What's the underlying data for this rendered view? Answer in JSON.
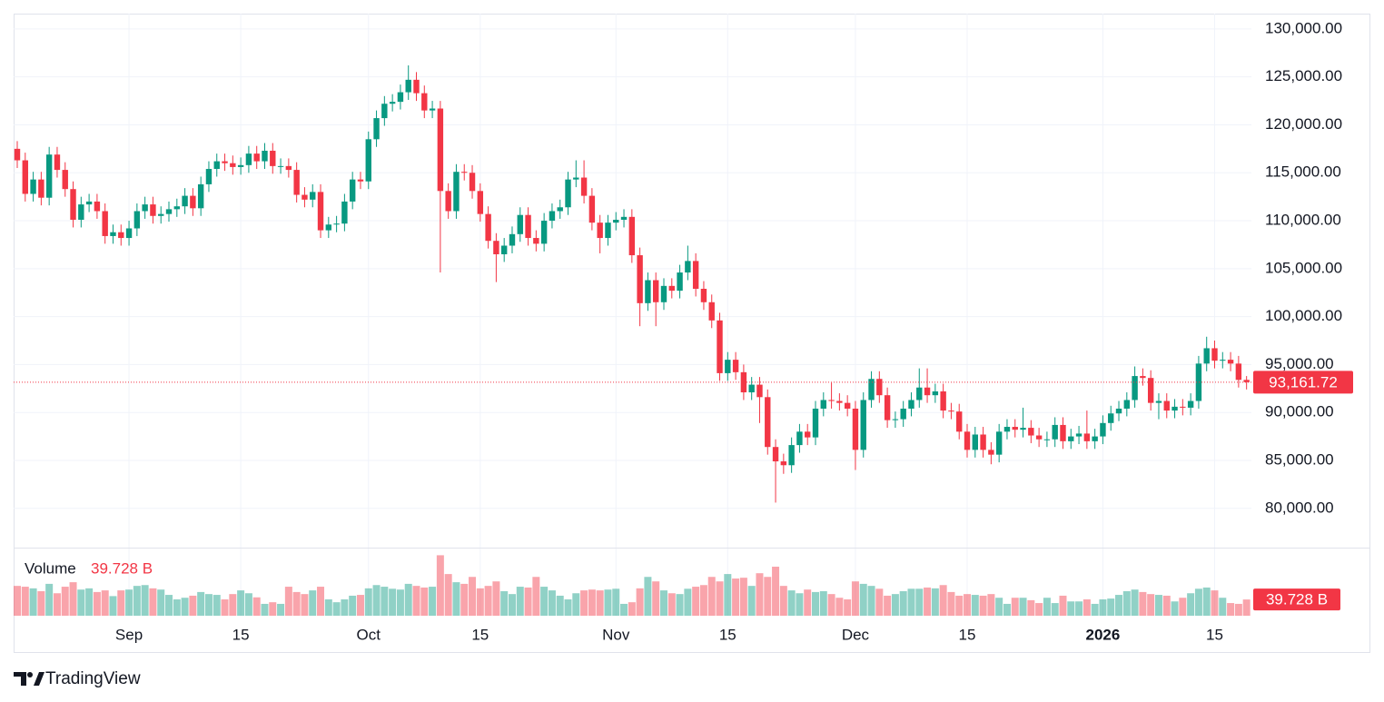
{
  "brand": "TradingView",
  "chart_data": {
    "type": "candlestick",
    "x": [
      "2025-08-18",
      "2025-08-19",
      "2025-08-20",
      "2025-08-21",
      "2025-08-22",
      "2025-08-23",
      "2025-08-24",
      "2025-08-25",
      "2025-08-26",
      "2025-08-27",
      "2025-08-28",
      "2025-08-29",
      "2025-08-30",
      "2025-08-31",
      "2025-09-01",
      "2025-09-02",
      "2025-09-03",
      "2025-09-04",
      "2025-09-05",
      "2025-09-06",
      "2025-09-07",
      "2025-09-08",
      "2025-09-09",
      "2025-09-10",
      "2025-09-11",
      "2025-09-12",
      "2025-09-13",
      "2025-09-14",
      "2025-09-15",
      "2025-09-16",
      "2025-09-17",
      "2025-09-18",
      "2025-09-19",
      "2025-09-20",
      "2025-09-21",
      "2025-09-22",
      "2025-09-23",
      "2025-09-24",
      "2025-09-25",
      "2025-09-26",
      "2025-09-27",
      "2025-09-28",
      "2025-09-29",
      "2025-09-30",
      "2025-10-01",
      "2025-10-02",
      "2025-10-03",
      "2025-10-04",
      "2025-10-05",
      "2025-10-06",
      "2025-10-07",
      "2025-10-08",
      "2025-10-09",
      "2025-10-10",
      "2025-10-11",
      "2025-10-12",
      "2025-10-13",
      "2025-10-14",
      "2025-10-15",
      "2025-10-16",
      "2025-10-17",
      "2025-10-18",
      "2025-10-19",
      "2025-10-20",
      "2025-10-21",
      "2025-10-22",
      "2025-10-23",
      "2025-10-24",
      "2025-10-25",
      "2025-10-26",
      "2025-10-27",
      "2025-10-28",
      "2025-10-29",
      "2025-10-30",
      "2025-10-31",
      "2025-11-01",
      "2025-11-02",
      "2025-11-03",
      "2025-11-04",
      "2025-11-05",
      "2025-11-06",
      "2025-11-07",
      "2025-11-08",
      "2025-11-09",
      "2025-11-10",
      "2025-11-11",
      "2025-11-12",
      "2025-11-13",
      "2025-11-14",
      "2025-11-15",
      "2025-11-16",
      "2025-11-17",
      "2025-11-18",
      "2025-11-19",
      "2025-11-20",
      "2025-11-21",
      "2025-11-22",
      "2025-11-23",
      "2025-11-24",
      "2025-11-25",
      "2025-11-26",
      "2025-11-27",
      "2025-11-28",
      "2025-11-29",
      "2025-11-30",
      "2025-12-01",
      "2025-12-02",
      "2025-12-03",
      "2025-12-04",
      "2025-12-05",
      "2025-12-06",
      "2025-12-07",
      "2025-12-08",
      "2025-12-09",
      "2025-12-10",
      "2025-12-11",
      "2025-12-12",
      "2025-12-13",
      "2025-12-14",
      "2025-12-15",
      "2025-12-16",
      "2025-12-17",
      "2025-12-18",
      "2025-12-19",
      "2025-12-20",
      "2025-12-21",
      "2025-12-22",
      "2025-12-23",
      "2025-12-24",
      "2025-12-25",
      "2025-12-26",
      "2025-12-27",
      "2025-12-28",
      "2025-12-29",
      "2025-12-30",
      "2025-12-31",
      "2026-01-01",
      "2026-01-02",
      "2026-01-03",
      "2026-01-04",
      "2026-01-05",
      "2026-01-06",
      "2026-01-07",
      "2026-01-08",
      "2026-01-09",
      "2026-01-10",
      "2026-01-11",
      "2026-01-12",
      "2026-01-13",
      "2026-01-14",
      "2026-01-15",
      "2026-01-16",
      "2026-01-17",
      "2026-01-18",
      "2026-01-19"
    ],
    "open": [
      117500,
      116300,
      112800,
      114300,
      112400,
      116900,
      115300,
      113300,
      110100,
      111700,
      112000,
      111000,
      108400,
      108800,
      108200,
      109200,
      111000,
      111700,
      110500,
      110700,
      111200,
      111500,
      112600,
      111300,
      113800,
      115400,
      116200,
      116000,
      115600,
      115800,
      117000,
      116200,
      117300,
      115700,
      115700,
      115300,
      112700,
      112200,
      113000,
      109000,
      109600,
      109700,
      112000,
      114300,
      114100,
      118500,
      120700,
      122200,
      122400,
      123400,
      124700,
      123300,
      121500,
      121700,
      113100,
      111000,
      115100,
      115000,
      113100,
      110700,
      107900,
      106500,
      107400,
      108600,
      110600,
      108200,
      107600,
      110000,
      111000,
      111400,
      114300,
      114500,
      112600,
      109800,
      108200,
      109800,
      110100,
      110400,
      106400,
      101400,
      103800,
      101500,
      103200,
      102700,
      104600,
      105800,
      102900,
      101500,
      99600,
      94100,
      95500,
      94200,
      92100,
      92900,
      91600,
      86400,
      84900,
      84500,
      86600,
      88000,
      87400,
      90400,
      91300,
      91200,
      91000,
      90400,
      86100,
      91300,
      93500,
      91800,
      89200,
      89300,
      90400,
      91300,
      92600,
      91800,
      92200,
      90200,
      90100,
      88000,
      86100,
      87700,
      86100,
      85600,
      88000,
      88500,
      88200,
      88400,
      87600,
      87200,
      87200,
      88700,
      87000,
      87500,
      87800,
      87000,
      87500,
      88900,
      89900,
      90400,
      91300,
      93800,
      93600,
      91000,
      91200,
      90200,
      90600,
      90500,
      91200,
      95100,
      96700,
      95400,
      95500,
      95100,
      93400
    ],
    "high": [
      118300,
      117100,
      115100,
      115100,
      117700,
      117700,
      116100,
      114100,
      112500,
      112800,
      112800,
      111800,
      109600,
      109600,
      110000,
      111800,
      112500,
      112500,
      111500,
      112000,
      112300,
      113400,
      113400,
      114600,
      116200,
      117000,
      117000,
      116800,
      116600,
      117800,
      117800,
      118100,
      118100,
      116500,
      116500,
      116100,
      113500,
      113800,
      113800,
      110400,
      110500,
      112800,
      115100,
      115100,
      119300,
      121500,
      123000,
      123200,
      124200,
      126200,
      125500,
      124100,
      122500,
      122500,
      113900,
      115900,
      115900,
      115800,
      113900,
      111500,
      108700,
      108200,
      109400,
      111400,
      111400,
      109000,
      110800,
      111800,
      112200,
      115100,
      116300,
      116300,
      113400,
      110600,
      110600,
      110900,
      111200,
      111200,
      107200,
      104600,
      104600,
      104000,
      104000,
      105400,
      107400,
      106600,
      103700,
      102300,
      100400,
      96300,
      96300,
      95000,
      93700,
      93700,
      92400,
      87200,
      85700,
      87400,
      88800,
      88800,
      91200,
      92100,
      93100,
      92000,
      91800,
      91200,
      92100,
      94300,
      94300,
      92600,
      90100,
      91200,
      92100,
      94600,
      94600,
      93000,
      93000,
      91000,
      90900,
      88800,
      88500,
      88500,
      86900,
      88800,
      89300,
      89300,
      90500,
      89200,
      88400,
      88000,
      89500,
      89500,
      88300,
      88600,
      90200,
      88300,
      89700,
      90700,
      91200,
      92100,
      94800,
      94600,
      94400,
      92000,
      92000,
      91400,
      91400,
      92000,
      95900,
      97900,
      97500,
      96300,
      96300,
      95900,
      93800
    ],
    "low": [
      115500,
      112000,
      112000,
      111600,
      111600,
      114500,
      112500,
      109300,
      109300,
      110900,
      110200,
      107600,
      107600,
      107400,
      107400,
      108400,
      110200,
      109700,
      109700,
      109900,
      110400,
      110700,
      110500,
      110500,
      113000,
      114600,
      115200,
      114800,
      114800,
      115000,
      115400,
      115400,
      114900,
      114900,
      114500,
      111900,
      111400,
      111400,
      108200,
      108200,
      108800,
      108900,
      111200,
      113300,
      113300,
      117700,
      119900,
      121400,
      121600,
      122600,
      122500,
      120700,
      120700,
      104600,
      110200,
      110200,
      114200,
      112300,
      109900,
      107100,
      103600,
      105700,
      106600,
      107800,
      107400,
      106800,
      106800,
      109200,
      110200,
      110600,
      113500,
      111800,
      109000,
      106600,
      107400,
      109000,
      109300,
      105600,
      99000,
      100600,
      99000,
      100700,
      101900,
      101900,
      103800,
      102100,
      100700,
      98800,
      93300,
      93300,
      93400,
      91300,
      91300,
      88900,
      85600,
      80600,
      83600,
      83700,
      85800,
      86600,
      86600,
      89600,
      90400,
      90200,
      89600,
      84000,
      85300,
      90500,
      91000,
      88400,
      88400,
      88500,
      89600,
      90500,
      91000,
      91000,
      89400,
      89300,
      87200,
      85300,
      85300,
      85300,
      84600,
      84800,
      87200,
      87400,
      87400,
      86800,
      86400,
      86400,
      86400,
      86200,
      86200,
      86700,
      86200,
      86200,
      86700,
      88100,
      89100,
      89600,
      90500,
      92800,
      90200,
      89300,
      89400,
      89400,
      89700,
      89700,
      90400,
      94300,
      94600,
      94600,
      94300,
      92600,
      92400
    ],
    "close": [
      116300,
      112800,
      114300,
      112400,
      116900,
      115300,
      113300,
      110100,
      111700,
      112000,
      111000,
      108400,
      108800,
      108200,
      109200,
      111000,
      111700,
      110500,
      110700,
      111200,
      111500,
      112600,
      111300,
      113800,
      115400,
      116200,
      116000,
      115600,
      115800,
      117000,
      116200,
      117300,
      115700,
      115700,
      115300,
      112700,
      112200,
      113000,
      109000,
      109600,
      109700,
      112000,
      114300,
      114100,
      118500,
      120700,
      122200,
      122400,
      123400,
      124700,
      123300,
      121500,
      121700,
      113100,
      111000,
      115100,
      115000,
      113100,
      110700,
      107900,
      106500,
      107400,
      108600,
      110600,
      108200,
      107600,
      110000,
      111000,
      111400,
      114300,
      114500,
      112600,
      109800,
      108200,
      109800,
      110100,
      110400,
      106400,
      101400,
      103800,
      101500,
      103200,
      102700,
      104600,
      105800,
      102900,
      101500,
      99600,
      94100,
      95500,
      94200,
      92100,
      92900,
      91600,
      86400,
      84900,
      84500,
      86600,
      88000,
      87400,
      90400,
      91300,
      91200,
      91000,
      90400,
      86100,
      91300,
      93500,
      91800,
      89200,
      89300,
      90400,
      91300,
      92600,
      91800,
      92200,
      90200,
      90100,
      88000,
      86100,
      87700,
      86100,
      85600,
      88000,
      88500,
      88200,
      88400,
      87600,
      87200,
      87200,
      88700,
      87000,
      87500,
      87800,
      87000,
      87500,
      88900,
      89900,
      90400,
      91300,
      93800,
      93600,
      91000,
      91200,
      90200,
      90600,
      90500,
      91200,
      95100,
      96700,
      95400,
      95500,
      95100,
      93400,
      93161.72
    ],
    "last_close_label": "93,161.72",
    "up_color": "#089981",
    "down_color": "#f23645",
    "ylim": [
      76000,
      131600
    ],
    "yticks": [
      {
        "value": 80000,
        "label": "80,000.00"
      },
      {
        "value": 85000,
        "label": "85,000.00"
      },
      {
        "value": 90000,
        "label": "90,000.00"
      },
      {
        "value": 95000,
        "label": "95,000.00"
      },
      {
        "value": 100000,
        "label": "100,000.00"
      },
      {
        "value": 105000,
        "label": "105,000.00"
      },
      {
        "value": 110000,
        "label": "110,000.00"
      },
      {
        "value": 115000,
        "label": "115,000.00"
      },
      {
        "value": 120000,
        "label": "120,000.00"
      },
      {
        "value": 125000,
        "label": "125,000.00"
      },
      {
        "value": 130000,
        "label": "130,000.00"
      }
    ],
    "xticks": [
      {
        "value": "2025-09-01",
        "label": "Sep"
      },
      {
        "value": "2025-09-15",
        "label": "15"
      },
      {
        "value": "2025-10-01",
        "label": "Oct"
      },
      {
        "value": "2025-10-15",
        "label": "15"
      },
      {
        "value": "2025-11-01",
        "label": "Nov"
      },
      {
        "value": "2025-11-15",
        "label": "15"
      },
      {
        "value": "2025-12-01",
        "label": "Dec"
      },
      {
        "value": "2025-12-15",
        "label": "15"
      },
      {
        "value": "2026-01-01",
        "label": "2026"
      },
      {
        "value": "2026-01-15",
        "label": "15"
      }
    ],
    "grid": true,
    "volume": {
      "name": "Volume",
      "value_label": "39.728 B",
      "ylim": [
        0,
        160
      ],
      "values": [
        73,
        71,
        67,
        60,
        78,
        55,
        71,
        82,
        64,
        67,
        58,
        62,
        48,
        62,
        64,
        73,
        75,
        67,
        64,
        51,
        40,
        44,
        49,
        58,
        53,
        51,
        40,
        53,
        62,
        55,
        45,
        29,
        33,
        29,
        71,
        58,
        53,
        62,
        71,
        40,
        33,
        40,
        49,
        51,
        67,
        75,
        71,
        66,
        64,
        78,
        73,
        69,
        71,
        148,
        102,
        82,
        78,
        95,
        67,
        73,
        84,
        60,
        53,
        71,
        69,
        95,
        71,
        62,
        49,
        40,
        55,
        62,
        64,
        62,
        64,
        66,
        29,
        33,
        67,
        95,
        84,
        62,
        55,
        53,
        66,
        71,
        75,
        95,
        84,
        102,
        91,
        93,
        73,
        104,
        95,
        120,
        73,
        62,
        55,
        64,
        58,
        60,
        53,
        44,
        40,
        84,
        78,
        73,
        66,
        49,
        53,
        60,
        66,
        66,
        69,
        67,
        75,
        58,
        49,
        53,
        51,
        49,
        53,
        44,
        29,
        44,
        44,
        38,
        31,
        44,
        31,
        49,
        35,
        35,
        40,
        29,
        40,
        42,
        51,
        60,
        64,
        58,
        53,
        51,
        49,
        35,
        44,
        55,
        66,
        69,
        62,
        44,
        31,
        29,
        39.728
      ]
    }
  }
}
